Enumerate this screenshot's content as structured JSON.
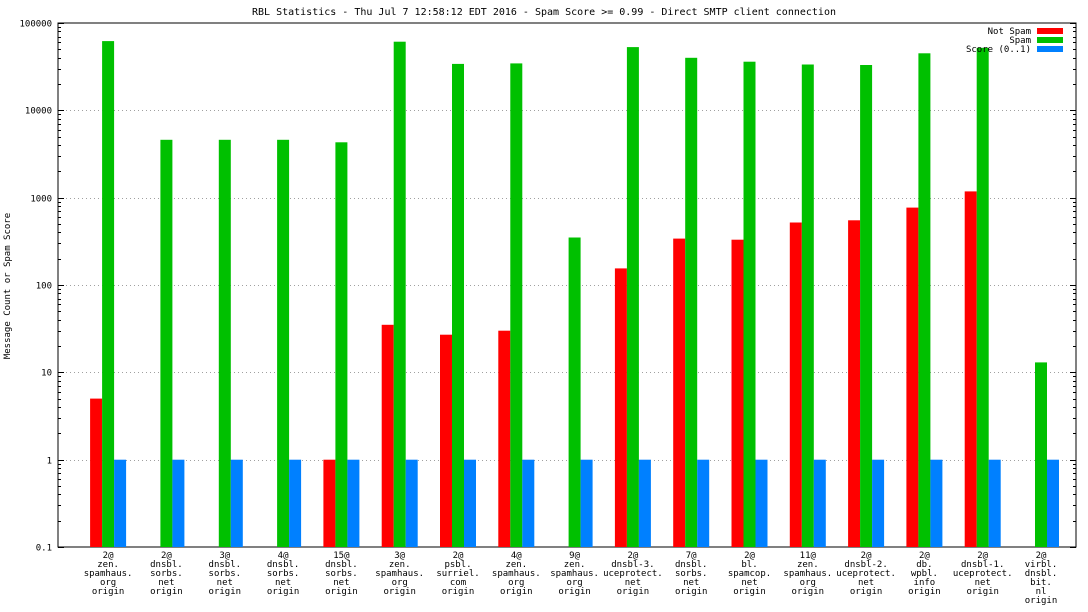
{
  "chart_data": {
    "type": "bar",
    "scale": "log",
    "title": "RBL Statistics - Thu Jul  7 12:58:12 EDT 2016 - Spam Score >= 0.99 - Direct SMTP client connection",
    "xlabel": "",
    "ylabel": "Message Count or Spam Score",
    "ylim": [
      0.1,
      100000
    ],
    "yticks": [
      "0.1",
      "1",
      "10",
      "100",
      "1000",
      "10000",
      "100000"
    ],
    "grid": true,
    "legend_position": "top-right",
    "categories": [
      [
        "2@",
        "zen.",
        "spamhaus.",
        "org",
        "origin"
      ],
      [
        "2@",
        "dnsbl.",
        "sorbs.",
        "net",
        "origin"
      ],
      [
        "3@",
        "dnsbl.",
        "sorbs.",
        "net",
        "origin"
      ],
      [
        "4@",
        "dnsbl.",
        "sorbs.",
        "net",
        "origin"
      ],
      [
        "15@",
        "dnsbl.",
        "sorbs.",
        "net",
        "origin"
      ],
      [
        "3@",
        "zen.",
        "spamhaus.",
        "org",
        "origin"
      ],
      [
        "2@",
        "psbl.",
        "surriel.",
        "com",
        "origin"
      ],
      [
        "4@",
        "zen.",
        "spamhaus.",
        "org",
        "origin"
      ],
      [
        "9@",
        "zen.",
        "spamhaus.",
        "org",
        "origin"
      ],
      [
        "2@",
        "dnsbl-3.",
        "uceprotect.",
        "net",
        "origin"
      ],
      [
        "7@",
        "dnsbl.",
        "sorbs.",
        "net",
        "origin"
      ],
      [
        "2@",
        "bl.",
        "spamcop.",
        "net",
        "origin"
      ],
      [
        "11@",
        "zen.",
        "spamhaus.",
        "org",
        "origin"
      ],
      [
        "2@",
        "dnsbl-2.",
        "uceprotect.",
        "net",
        "origin"
      ],
      [
        "2@",
        "db.",
        "wpbl.",
        "info",
        "origin"
      ],
      [
        "2@",
        "dnsbl-1.",
        "uceprotect.",
        "net",
        "origin"
      ],
      [
        "2@",
        "virbl.",
        "dnsbl.",
        "bit.",
        "nl",
        "origin"
      ]
    ],
    "series": [
      {
        "name": "Not Spam",
        "color": "#ff0000",
        "values": [
          5,
          null,
          null,
          null,
          1,
          35,
          27,
          30,
          null,
          155,
          340,
          330,
          520,
          550,
          770,
          1180,
          null
        ]
      },
      {
        "name": "Spam",
        "color": "#00c000",
        "values": [
          62000,
          4600,
          4600,
          4600,
          4300,
          61000,
          34000,
          34500,
          350,
          53000,
          40000,
          36000,
          33500,
          33000,
          45000,
          52000,
          13
        ]
      },
      {
        "name": "Score (0..1)",
        "color": "#0080ff",
        "values": [
          1,
          1,
          1,
          1,
          1,
          1,
          1,
          1,
          1,
          1,
          1,
          1,
          1,
          1,
          1,
          1,
          1
        ]
      }
    ]
  }
}
